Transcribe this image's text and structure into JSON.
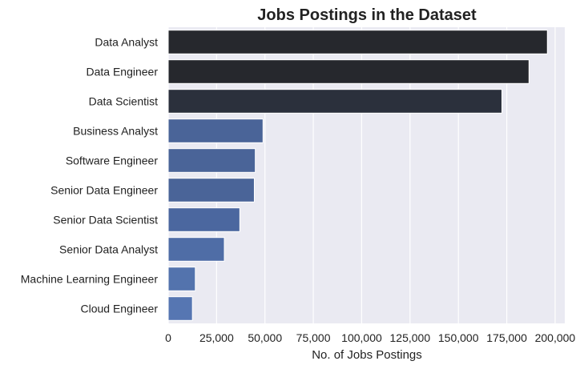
{
  "chart_data": {
    "type": "bar",
    "orientation": "horizontal",
    "title": "Jobs Postings in the Dataset",
    "xlabel": "No. of Jobs Postings",
    "ylabel": "",
    "xlim": [
      0,
      205000
    ],
    "xticks": [
      0,
      25000,
      50000,
      75000,
      100000,
      125000,
      150000,
      175000,
      200000
    ],
    "xtick_labels": [
      "0",
      "25,000",
      "50,000",
      "75,000",
      "100,000",
      "125,000",
      "150,000",
      "175,000",
      "200,000"
    ],
    "grid": true,
    "categories": [
      "Data Analyst",
      "Data Engineer",
      "Data Scientist",
      "Business Analyst",
      "Software Engineer",
      "Senior Data Engineer",
      "Senior Data Scientist",
      "Senior Data Analyst",
      "Machine Learning Engineer",
      "Cloud Engineer"
    ],
    "values": [
      196000,
      186500,
      172500,
      49000,
      45000,
      44500,
      37000,
      29000,
      14000,
      12500
    ],
    "colors": [
      "#26282d",
      "#26282d",
      "#2b303c",
      "#4a6498",
      "#4a6498",
      "#4a6498",
      "#4b679f",
      "#4f6da6",
      "#5373ad",
      "#5676b2"
    ],
    "plot_background": "#eaeaf2",
    "grid_color": "#ffffff"
  }
}
